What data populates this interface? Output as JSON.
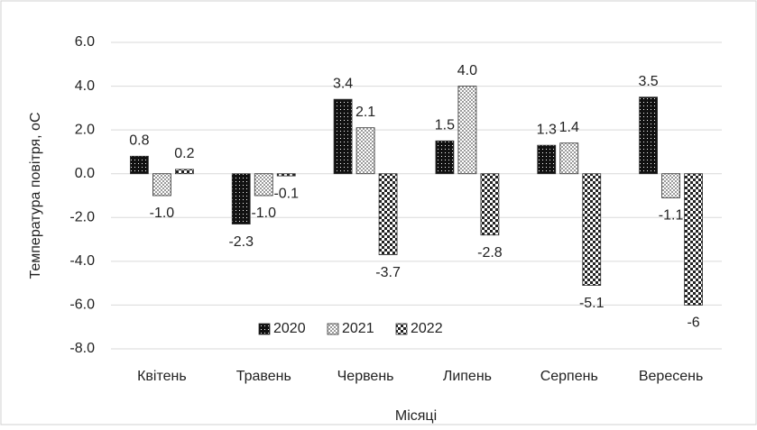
{
  "chart_data": {
    "type": "bar",
    "y_label": "Температура повітря, оС",
    "x_label": "Місяці",
    "categories": [
      "Квітень",
      "Травень",
      "Червень",
      "Липень",
      "Серпень",
      "Вересень"
    ],
    "series": [
      {
        "name": "2020",
        "color": "#111111",
        "values": [
          0.8,
          -2.3,
          3.4,
          1.5,
          1.3,
          3.5
        ],
        "value_labels": [
          "0.8",
          "-2.3",
          "3.4",
          "1.5",
          "1.3",
          "3.5"
        ]
      },
      {
        "name": "2021",
        "color": "#9a9a9a",
        "values": [
          -1.0,
          -1.0,
          2.1,
          4.0,
          1.4,
          -1.1
        ],
        "value_labels": [
          "-1.0",
          "-1.0",
          "2.1",
          "4.0",
          "1.4",
          "-1.1"
        ]
      },
      {
        "name": "2022",
        "color": "#222222",
        "values": [
          0.2,
          -0.1,
          -3.7,
          -2.8,
          -5.1,
          -6
        ],
        "value_labels": [
          "0.2",
          "-0.1",
          "-3.7",
          "-2.8",
          "-5.1",
          "-6"
        ]
      }
    ],
    "ylim": [
      -8,
      6
    ],
    "yticks": [
      {
        "value": -8,
        "label": "-8.0"
      },
      {
        "value": -6,
        "label": "-6.0"
      },
      {
        "value": -4,
        "label": "-4.0"
      },
      {
        "value": -2,
        "label": "-2.0"
      },
      {
        "value": 0,
        "label": "0.0"
      },
      {
        "value": 2,
        "label": "2.0"
      },
      {
        "value": 4,
        "label": "4.0"
      },
      {
        "value": 6,
        "label": "6.0"
      }
    ],
    "grid": true,
    "legend": "bottom"
  }
}
